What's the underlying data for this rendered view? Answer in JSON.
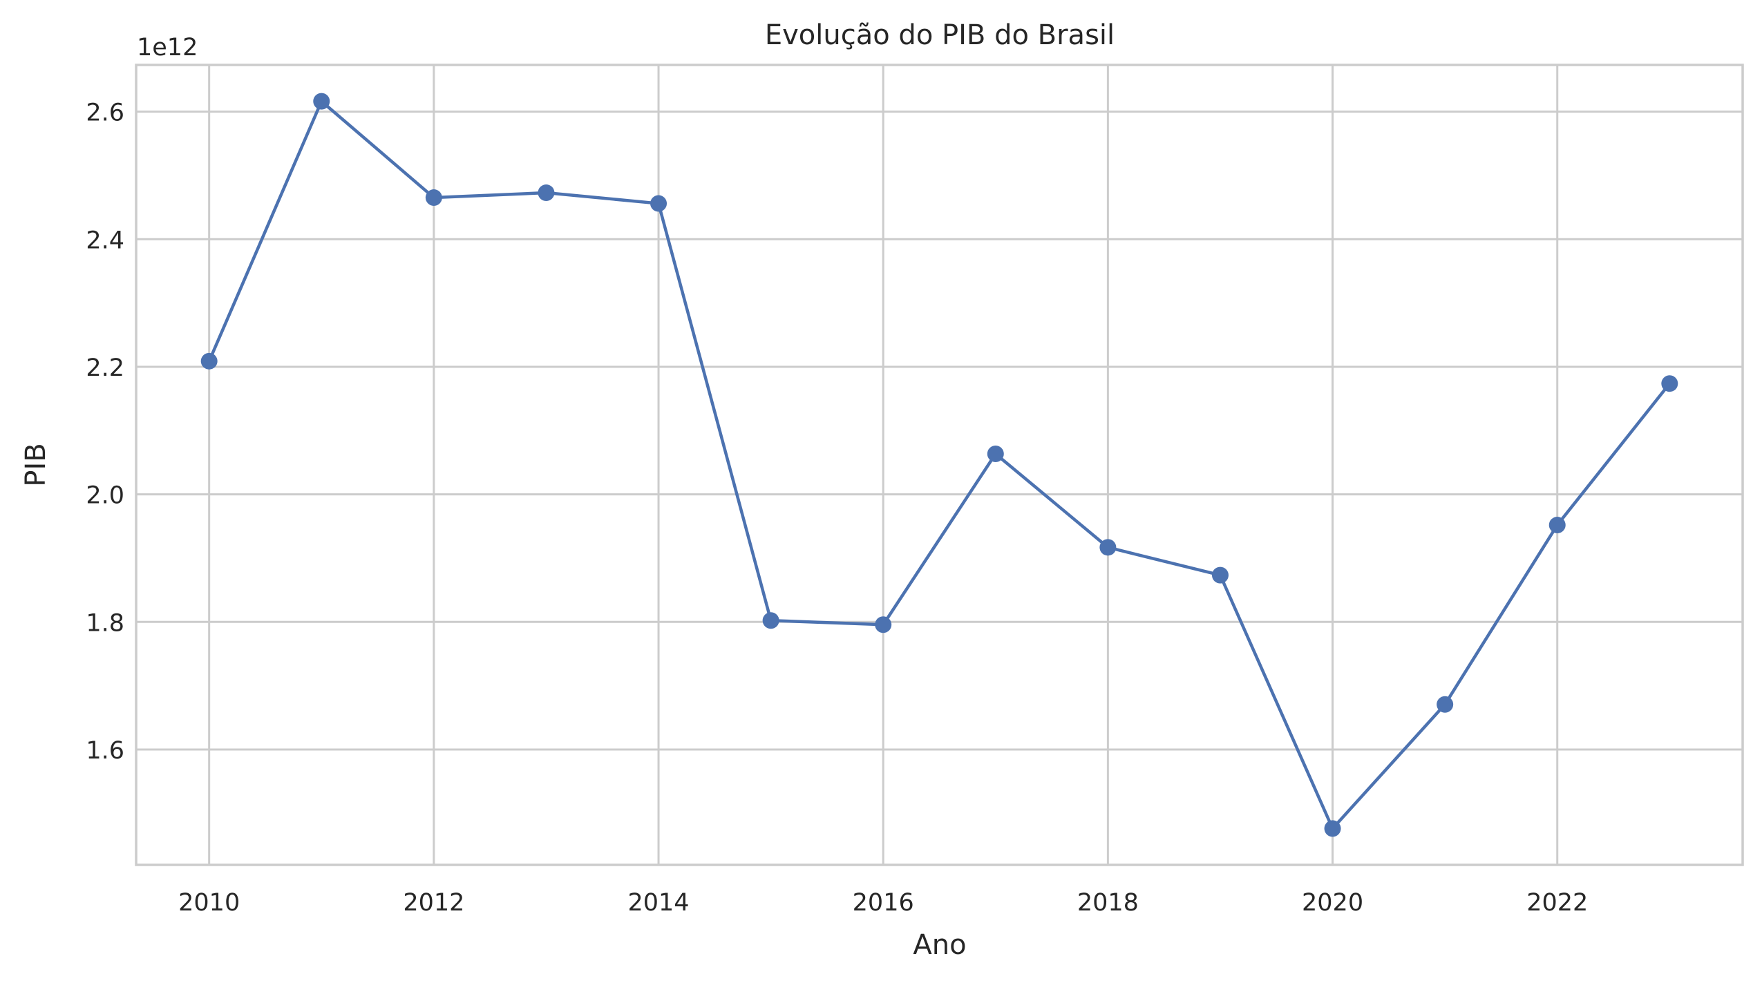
{
  "chart_data": {
    "type": "line",
    "title": "Evolução do PIB do Brasil",
    "xlabel": "Ano",
    "ylabel": "PIB",
    "offset_label": "1e12",
    "x": [
      2010,
      2011,
      2012,
      2013,
      2014,
      2015,
      2016,
      2017,
      2018,
      2019,
      2020,
      2021,
      2022,
      2023
    ],
    "series": [
      {
        "values": [
          2208800000000,
          2616200000000,
          2465200000000,
          2472800000000,
          2456000000000,
          1802200000000,
          1795700000000,
          2063500000000,
          1916900000000,
          1873300000000,
          1476100000000,
          1670600000000,
          1951900000000,
          2173700000000
        ],
        "color": "#4c72b0",
        "marker": "circle"
      }
    ],
    "xticks": [
      2010,
      2012,
      2014,
      2016,
      2018,
      2020,
      2022
    ],
    "yticks": [
      1600000000000,
      1800000000000,
      2000000000000,
      2200000000000,
      2400000000000,
      2600000000000
    ],
    "ytick_labels": [
      "1.6",
      "1.8",
      "2.0",
      "2.2",
      "2.4",
      "2.6"
    ],
    "xlim": [
      2009.35,
      2023.65
    ],
    "ylim": [
      1419100000000,
      2673200000000
    ],
    "grid": true,
    "legend": "none",
    "colors": {
      "line": "#4c72b0",
      "grid": "#cccccc",
      "axes": "#cccccc",
      "text": "#262626"
    }
  }
}
